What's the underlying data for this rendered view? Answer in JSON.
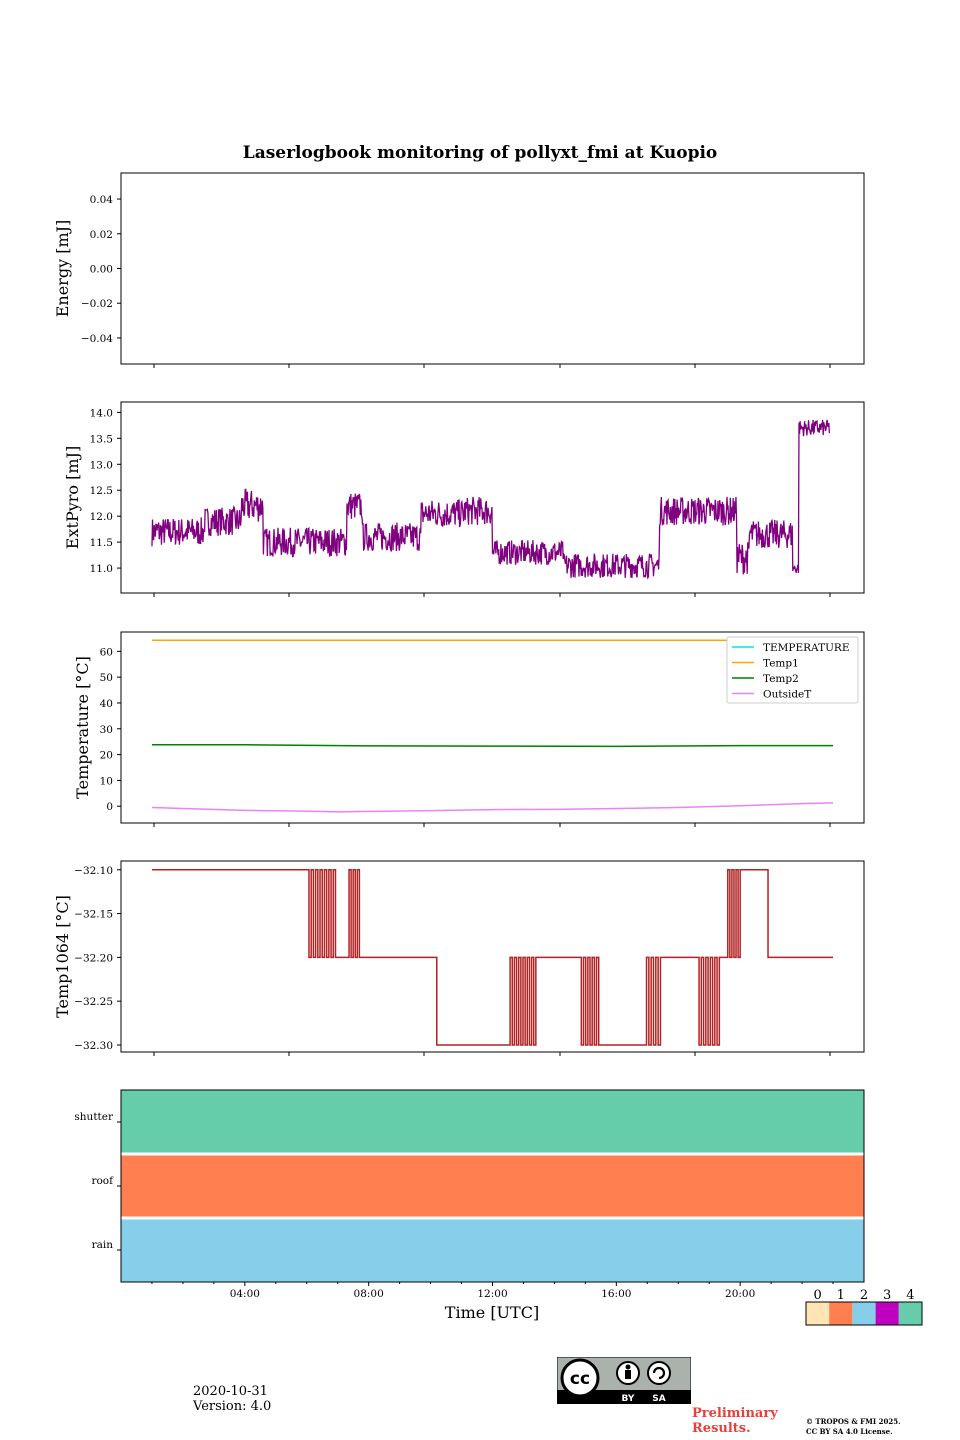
{
  "chart_data": {
    "title": "Laserlogbook monitoring of pollyxt_fmi at Kuopio",
    "xlabel": "Time [UTC]",
    "x_range_hours": [
      0,
      24
    ],
    "x_tick_labels": [
      "04:00",
      "08:00",
      "12:00",
      "16:00",
      "20:00"
    ],
    "x_tick_hours": [
      4,
      8,
      12,
      16,
      20
    ],
    "panels": [
      {
        "id": "energy",
        "type": "line",
        "ylabel": "Energy [mJ]",
        "ylim": [
          -0.055,
          0.055
        ],
        "y_ticks": [
          0.04,
          0.02,
          0.0,
          -0.02,
          -0.04
        ],
        "y_tick_labels": [
          "0.04",
          "0.02",
          "0.00",
          "−0.02",
          "−0.04"
        ],
        "series": []
      },
      {
        "id": "extpyro",
        "type": "line",
        "ylabel": "ExtPyro [mJ]",
        "ylim": [
          10.52,
          14.2
        ],
        "y_ticks": [
          14.0,
          13.5,
          13.0,
          12.5,
          12.0,
          11.5,
          11.0
        ],
        "y_tick_labels": [
          "14.0",
          "13.5",
          "13.0",
          "12.5",
          "12.0",
          "11.5",
          "11.0"
        ],
        "series": [
          {
            "name": "ExtPyro",
            "color": "#800080",
            "segments": [
              {
                "t0": 1.0,
                "t1": 2.7,
                "level": 11.7,
                "noise": 0.35
              },
              {
                "t0": 2.7,
                "t1": 3.9,
                "level": 11.9,
                "noise": 0.35
              },
              {
                "t0": 3.9,
                "t1": 4.6,
                "level": 12.2,
                "noise": 0.4
              },
              {
                "t0": 4.6,
                "t1": 7.3,
                "level": 11.5,
                "noise": 0.35
              },
              {
                "t0": 7.3,
                "t1": 7.8,
                "level": 12.2,
                "noise": 0.35
              },
              {
                "t0": 7.8,
                "t1": 9.7,
                "level": 11.6,
                "noise": 0.35
              },
              {
                "t0": 9.7,
                "t1": 11.1,
                "level": 12.05,
                "noise": 0.35
              },
              {
                "t0": 11.1,
                "t1": 12.0,
                "level": 12.1,
                "noise": 0.35
              },
              {
                "t0": 12.0,
                "t1": 14.3,
                "level": 11.3,
                "noise": 0.3
              },
              {
                "t0": 14.3,
                "t1": 17.4,
                "level": 11.05,
                "noise": 0.3
              },
              {
                "t0": 17.4,
                "t1": 19.9,
                "level": 12.1,
                "noise": 0.35
              },
              {
                "t0": 19.9,
                "t1": 20.3,
                "level": 11.2,
                "noise": 0.4
              },
              {
                "t0": 20.3,
                "t1": 21.7,
                "level": 11.65,
                "noise": 0.35
              },
              {
                "t0": 21.7,
                "t1": 21.9,
                "level": 11.0,
                "noise": 0.15
              },
              {
                "t0": 21.9,
                "t1": 22.9,
                "level": 13.7,
                "noise": 0.2
              }
            ]
          }
        ]
      },
      {
        "id": "temperature",
        "type": "line",
        "ylabel": "Temperature [°C]",
        "ylim": [
          -6.5,
          67.5
        ],
        "y_ticks": [
          60,
          50,
          40,
          30,
          20,
          10,
          0
        ],
        "y_tick_labels": [
          "60",
          "50",
          "40",
          "30",
          "20",
          "10",
          "0"
        ],
        "legend_position": "top-right",
        "series": [
          {
            "name": "TEMPERATURE",
            "color": "#00e5ee",
            "x": [],
            "y": []
          },
          {
            "name": "Temp1",
            "color": "#ffa500",
            "x": [
              1,
              23
            ],
            "y": [
              64.3,
              64.3
            ]
          },
          {
            "name": "Temp2",
            "color": "#008000",
            "x": [
              1,
              4,
              8,
              12,
              16,
              20,
              23
            ],
            "y": [
              23.8,
              23.8,
              23.4,
              23.3,
              23.2,
              23.5,
              23.5
            ]
          },
          {
            "name": "OutsideT",
            "color": "#ee82ee",
            "x": [
              1,
              2,
              4,
              6,
              7,
              8,
              10,
              12,
              14,
              16,
              18,
              20,
              22,
              23
            ],
            "y": [
              -0.5,
              -0.9,
              -1.6,
              -1.9,
              -2.2,
              -2.0,
              -1.7,
              -1.3,
              -1.2,
              -0.9,
              -0.5,
              0.2,
              1.0,
              1.3
            ]
          }
        ]
      },
      {
        "id": "temp1064",
        "type": "step",
        "ylabel": "Temp1064 [°C]",
        "ylim": [
          -32.308,
          -32.09
        ],
        "y_ticks": [
          -32.1,
          -32.15,
          -32.2,
          -32.25,
          -32.3
        ],
        "y_tick_labels": [
          "−32.10",
          "−32.15",
          "−32.20",
          "−32.25",
          "−32.30"
        ],
        "series": [
          {
            "name": "Temp1064",
            "color": "#b22222",
            "levels": [
              {
                "t0": 1.0,
                "t1": 6.0,
                "v": -32.1
              },
              {
                "t0": 6.0,
                "t1": 7.0,
                "v": -32.1,
                "flicker": -32.2
              },
              {
                "t0": 7.0,
                "t1": 7.3,
                "v": -32.2
              },
              {
                "t0": 7.3,
                "t1": 7.7,
                "v": -32.2,
                "flicker": -32.1
              },
              {
                "t0": 7.7,
                "t1": 10.2,
                "v": -32.2
              },
              {
                "t0": 10.2,
                "t1": 12.5,
                "v": -32.3
              },
              {
                "t0": 12.5,
                "t1": 13.4,
                "v": -32.3,
                "flicker": -32.2
              },
              {
                "t0": 13.4,
                "t1": 14.8,
                "v": -32.2
              },
              {
                "t0": 14.8,
                "t1": 15.5,
                "v": -32.2,
                "flicker": -32.3
              },
              {
                "t0": 15.5,
                "t1": 16.9,
                "v": -32.3
              },
              {
                "t0": 16.9,
                "t1": 17.5,
                "v": -32.3,
                "flicker": -32.2
              },
              {
                "t0": 17.5,
                "t1": 18.6,
                "v": -32.2
              },
              {
                "t0": 18.6,
                "t1": 19.4,
                "v": -32.2,
                "flicker": -32.3
              },
              {
                "t0": 19.4,
                "t1": 19.6,
                "v": -32.2
              },
              {
                "t0": 19.6,
                "t1": 20.0,
                "v": -32.1,
                "flicker": -32.2
              },
              {
                "t0": 20.0,
                "t1": 20.9,
                "v": -32.1
              },
              {
                "t0": 20.9,
                "t1": 23.0,
                "v": -32.2
              }
            ]
          }
        ]
      },
      {
        "id": "status",
        "type": "heatmap",
        "rows": [
          {
            "label": "shutter",
            "value": 4
          },
          {
            "label": "roof",
            "value": 1
          },
          {
            "label": "rain",
            "value": 2
          }
        ]
      }
    ],
    "colorbar": {
      "tick_labels": [
        "0",
        "1",
        "2",
        "3",
        "4"
      ],
      "colors": [
        "#ffe4b5",
        "#ff7f50",
        "#87ceeb",
        "#c000c0",
        "#66cdaa"
      ]
    }
  },
  "footer": {
    "date": "2020-10-31",
    "version": "Version: 4.0",
    "preliminary_line1": "Preliminary",
    "preliminary_line2": "Results.",
    "copyright_line1": "© TROPOS & FMI 2025.",
    "copyright_line2": "CC BY SA 4.0 License.",
    "license_by": "BY",
    "license_sa": "SA"
  }
}
